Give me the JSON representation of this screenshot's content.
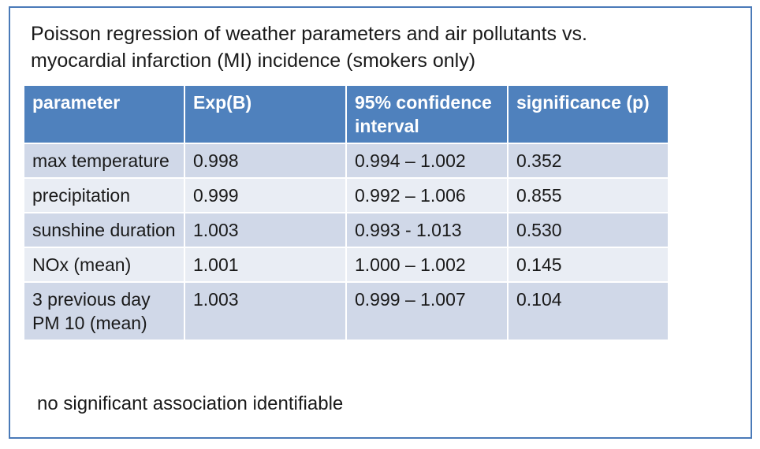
{
  "title": {
    "line1": "Poisson regression of weather parameters and air pollutants  vs.",
    "line2": "myocardial infarction (MI) incidence (smokers only)"
  },
  "table": {
    "headers": [
      "parameter",
      "Exp(B)",
      "95% confidence interval",
      "significance (p)"
    ],
    "header_colors": {
      "background": "#4f81bd",
      "text": "#ffffff"
    },
    "row_colors": {
      "band_dark": "#d0d8e8",
      "band_light": "#e9edf4"
    },
    "rows": [
      [
        "max temperature",
        "0.998",
        "0.994 – 1.002",
        "0.352"
      ],
      [
        "precipitation",
        "0.999",
        "0.992 – 1.006",
        "0.855"
      ],
      [
        "sunshine duration",
        "1.003",
        "0.993 -  1.013",
        "0.530"
      ],
      [
        "NOx (mean)",
        "1.001",
        "1.000 – 1.002",
        "0.145"
      ],
      [
        "3 previous day PM 10 (mean)",
        "1.003",
        "0.999 – 1.007",
        "0.104"
      ]
    ]
  },
  "footnote": "no significant association identifiable",
  "frame_color": "#4a7ab8"
}
